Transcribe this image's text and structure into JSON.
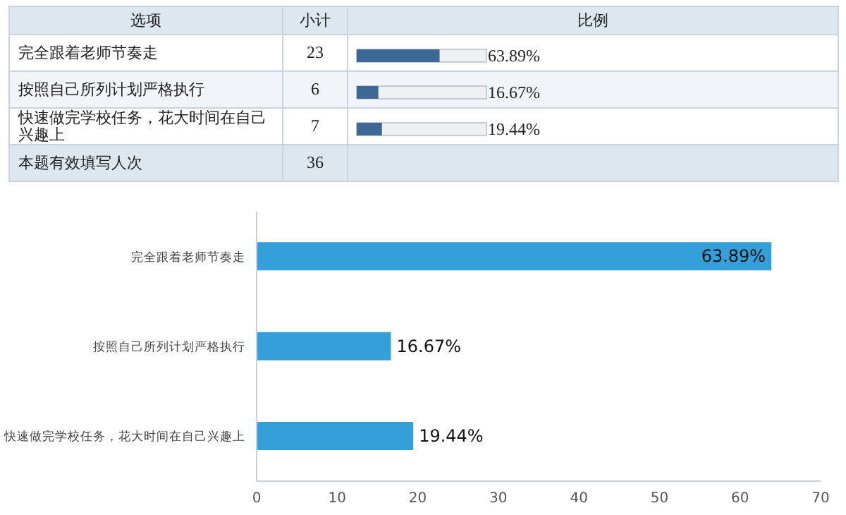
{
  "chart_data": [
    {
      "type": "bar",
      "orientation": "horizontal",
      "categories": [
        "完全跟着老师节奏走",
        "按照自己所列计划严格执行",
        "快速做完学校任务，花大时间在自己兴趣上",
        "本题有效填写人次"
      ],
      "values": [
        63.89,
        16.67,
        19.44,
        null
      ],
      "value_labels": [
        "63.89%",
        "16.67%",
        "19.44%",
        null
      ],
      "color": "#3d6896",
      "xlim": [
        0,
        100
      ],
      "grid": false,
      "annotations": [
        "选项",
        "小计",
        "比例",
        "23",
        "6",
        "7",
        "36"
      ]
    },
    {
      "type": "bar",
      "orientation": "horizontal",
      "categories": [
        "完全跟着老师节奏走",
        "按照自己所列计划严格执行",
        "快速做完学校任务，花大时间在自己兴趣上"
      ],
      "values": [
        63.89,
        16.67,
        19.44
      ],
      "value_labels": [
        "63.89%",
        "16.67%",
        "19.44%"
      ],
      "color": "#349fd9",
      "xlim": [
        0,
        70
      ],
      "xticks": [
        0,
        10,
        20,
        30,
        40,
        50,
        60,
        70
      ],
      "grid": false
    }
  ]
}
